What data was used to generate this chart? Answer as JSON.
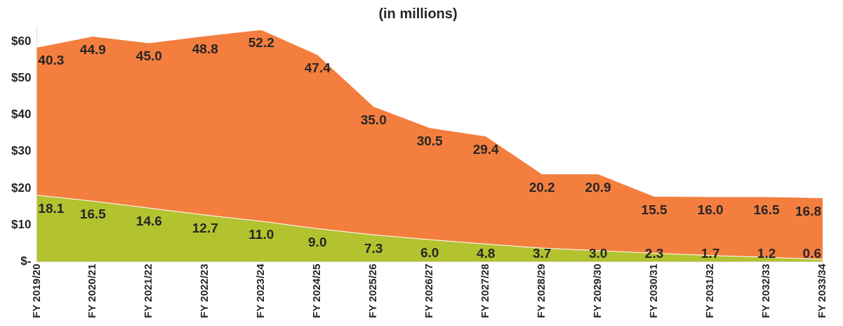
{
  "chart_data": {
    "type": "area",
    "title": "(in millions)",
    "stacked": true,
    "grid": false,
    "legend": false,
    "categories": [
      "FY 2019/20",
      "FY 2020/21",
      "FY 2021/22",
      "FY 2022/23",
      "FY 2023/24",
      "FY 2024/25",
      "FY 2025/26",
      "FY 2026/27",
      "FY 2027/28",
      "FY 2028/29",
      "FY 2029/30",
      "FY 2030/31",
      "FY 2031/32",
      "FY 2032/33",
      "FY 2033/34"
    ],
    "series": [
      {
        "color": "#b3c22f",
        "values": [
          18.1,
          16.5,
          14.6,
          12.7,
          11.0,
          9.0,
          7.3,
          6.0,
          4.8,
          3.7,
          3.0,
          2.3,
          1.7,
          1.2,
          0.6
        ],
        "value_labels": [
          "18.1",
          "16.5",
          "14.6",
          "12.7",
          "11.0",
          "9.0",
          "7.3",
          "6.0",
          "4.8",
          "3.7",
          "3.0",
          "2.3",
          "1.7",
          "1.2",
          "0.6"
        ]
      },
      {
        "color": "#f47e3e",
        "values": [
          40.3,
          44.9,
          45.0,
          48.8,
          52.2,
          47.4,
          35.0,
          30.5,
          29.4,
          20.2,
          20.9,
          15.5,
          16.0,
          16.5,
          16.8
        ],
        "value_labels": [
          "40.3",
          "44.9",
          "45.0",
          "48.8",
          "52.2",
          "47.4",
          "35.0",
          "30.5",
          "29.4",
          "20.2",
          "20.9",
          "15.5",
          "16.0",
          "16.5",
          "16.8"
        ]
      }
    ],
    "ylim": [
      0,
      64
    ],
    "yticks": [
      {
        "value": 0,
        "label": "$-"
      },
      {
        "value": 10,
        "label": "$10"
      },
      {
        "value": 20,
        "label": "$20"
      },
      {
        "value": 30,
        "label": "$30"
      },
      {
        "value": 40,
        "label": "$40"
      },
      {
        "value": 50,
        "label": "$50"
      },
      {
        "value": 60,
        "label": "$60"
      }
    ]
  }
}
